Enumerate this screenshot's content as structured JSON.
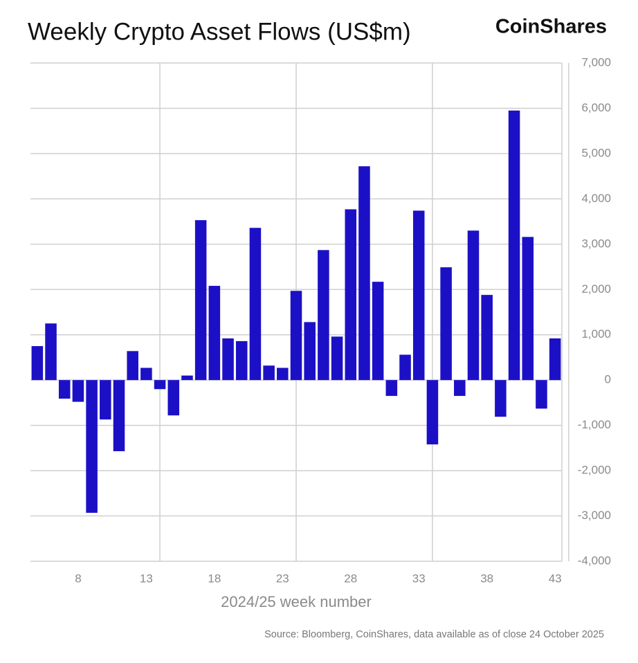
{
  "chart_data": {
    "type": "bar",
    "title": "Weekly Crypto Asset Flows (US$m)",
    "logo": "CoinShares",
    "x_label": "2024/25 week number",
    "source": "Source: Bloomberg, CoinShares, data available as of close 24 October 2025",
    "categories": [
      null,
      null,
      null,
      8,
      null,
      null,
      null,
      null,
      13,
      null,
      null,
      null,
      null,
      18,
      null,
      null,
      null,
      null,
      23,
      null,
      null,
      null,
      null,
      28,
      null,
      null,
      null,
      null,
      33,
      null,
      null,
      null,
      null,
      38,
      null,
      null,
      null,
      null,
      43
    ],
    "values": [
      750,
      1250,
      -410,
      -480,
      -2930,
      -870,
      -1570,
      640,
      270,
      -200,
      -780,
      100,
      3530,
      2080,
      920,
      860,
      3360,
      320,
      270,
      1970,
      1280,
      2870,
      960,
      3770,
      4720,
      2170,
      -350,
      560,
      3740,
      -1420,
      2490,
      -350,
      3300,
      1880,
      -810,
      5950,
      3160,
      -630,
      920
    ],
    "color": "#1c10c6",
    "ylim": [
      -4000,
      7000
    ],
    "yticks": [
      {
        "value": -4000,
        "label": "-4,000"
      },
      {
        "value": -3000,
        "label": "-3,000"
      },
      {
        "value": -2000,
        "label": "-2,000"
      },
      {
        "value": -1000,
        "label": "-1,000"
      },
      0,
      {
        "value": 1000,
        "label": "1,000"
      },
      {
        "value": 2000,
        "label": "2,000"
      },
      {
        "value": 3000,
        "label": "3,000"
      },
      {
        "value": 4000,
        "label": "4,000"
      },
      {
        "value": 5000,
        "label": "5,000"
      },
      {
        "value": 6000,
        "label": "6,000"
      },
      {
        "value": 7000,
        "label": "7,000"
      }
    ],
    "grid": true
  }
}
